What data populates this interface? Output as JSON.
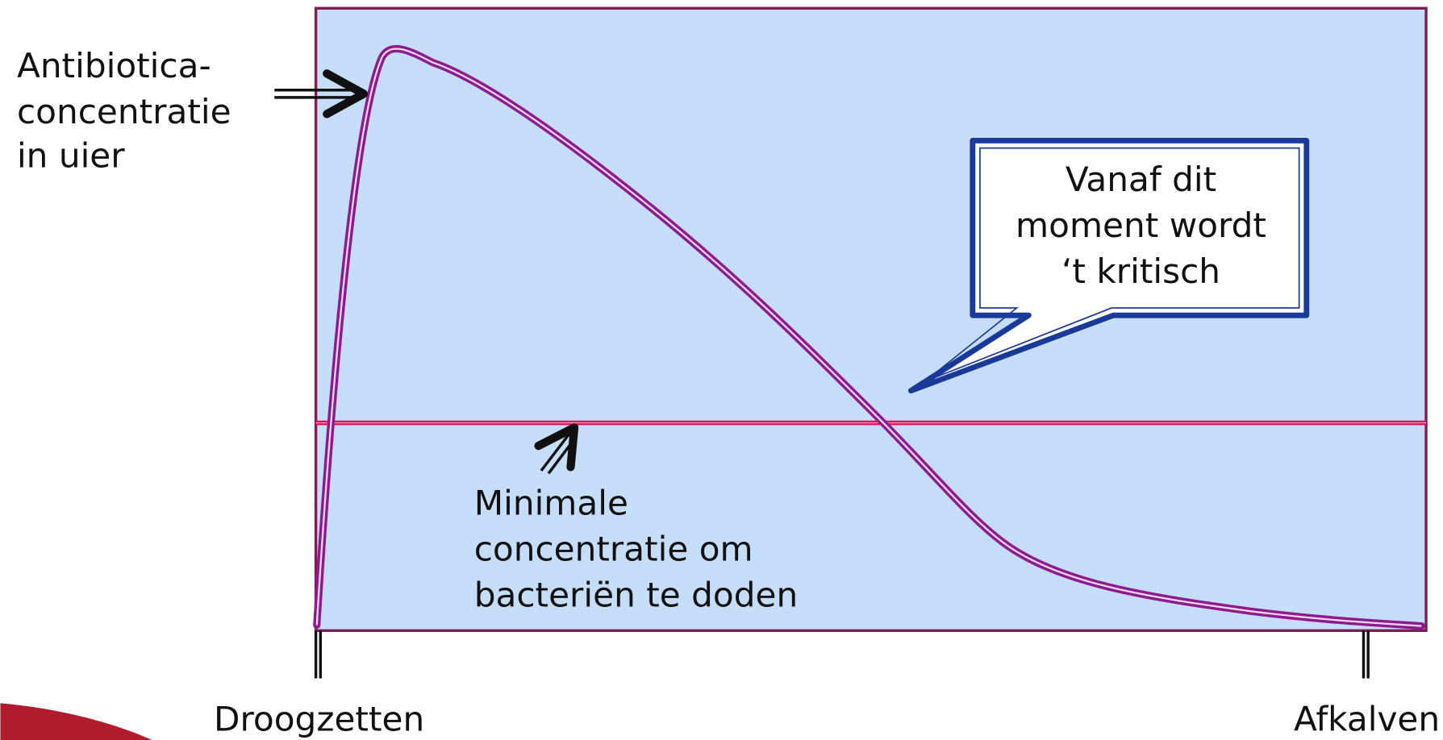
{
  "labels": {
    "curve": [
      "Antibiotica-",
      "concentratie",
      "in uier"
    ],
    "callout": [
      "Vanaf dit",
      "moment wordt",
      "‘t kritisch"
    ],
    "threshold": [
      "Minimale",
      "concentratie om",
      "bacteriën te doden"
    ],
    "start": "Droogzetten",
    "end": "Afkalven"
  }
}
